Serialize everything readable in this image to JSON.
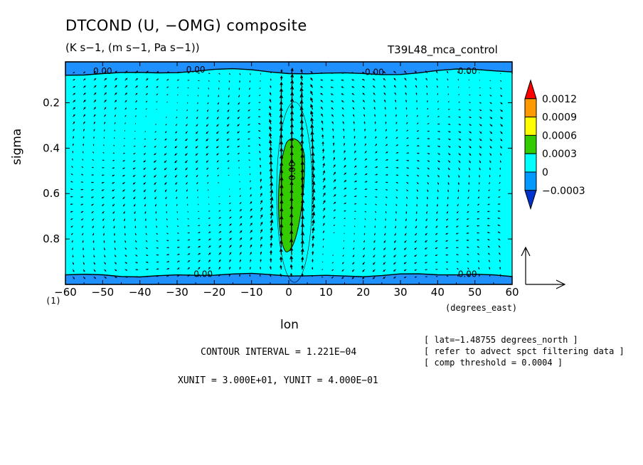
{
  "title": "DTCOND (U, −OMG) composite",
  "units": "(K s−1, (m s−1, Pa s−1))",
  "run_name": "T39L48_mca_control",
  "ylabel": "sigma",
  "xlabel": "lon",
  "x_units": "(degrees_east)",
  "y_bound_label": "(1)",
  "notes": [
    "[ lat=−1.48755 degrees_north ]",
    "[ refer to advect spct filtering data ]",
    "[ comp threshold = 0.0004 ]"
  ],
  "contour_interval": "CONTOUR INTERVAL = 1.221E−04",
  "xy_units": "XUNIT = 3.000E+01, YUNIT = 4.000E−01",
  "chart_data": {
    "type": "heatmap",
    "title": "DTCOND (U, −OMG) composite",
    "xlabel": "lon",
    "ylabel": "sigma",
    "xlim": [
      -60,
      60
    ],
    "ylim": [
      1.0,
      0.02
    ],
    "x_ticks": [
      -60,
      -50,
      -40,
      -30,
      -20,
      -10,
      0,
      10,
      20,
      30,
      40,
      50,
      60
    ],
    "x_tick_labels": [
      "−60",
      "−50",
      "−40",
      "−30",
      "−20",
      "−10",
      "0",
      "10",
      "20",
      "30",
      "40",
      "50",
      "60"
    ],
    "y_ticks": [
      0.2,
      0.4,
      0.6,
      0.8
    ],
    "y_tick_labels": [
      "0.2",
      "0.4",
      "0.6",
      "0.8"
    ],
    "legend": {
      "placement": "right",
      "levels": [
        "0.0012",
        "0.0009",
        "0.0006",
        "0.0003",
        "0",
        "−0.0003"
      ],
      "colors": [
        "#ff0000",
        "#ff9900",
        "#ffff00",
        "#33cc00",
        "#00ffff",
        "#0099ff",
        "#0033cc"
      ]
    },
    "background_color": "#00ffff",
    "negative_color": "#1e90ff",
    "positive_color": "#33cc00",
    "contour_labels": [
      "0.00",
      "0.00",
      "0.00",
      "0.00",
      "0.00",
      "0.00",
      "0.00"
    ],
    "vector_scale": {
      "xunit": 30.0,
      "yunit": 0.4
    },
    "heating_core": {
      "lon": 0,
      "sigma_range": [
        0.4,
        0.85
      ],
      "max_value": 0.0006
    },
    "grid": false
  }
}
